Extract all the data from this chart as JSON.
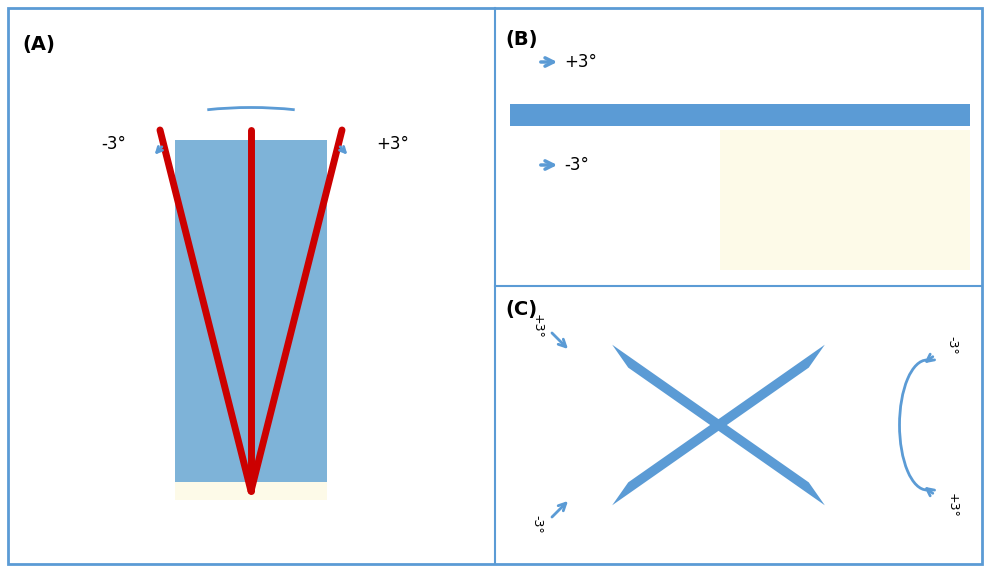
{
  "bg_color": "#ffffff",
  "border_color": "#5b9bd5",
  "blue_color": "#5b9bd5",
  "red_color": "#cc0000",
  "light_blue_rect": "#7eb3d8",
  "light_yellow": "#fdfae8",
  "label_A": "(A)",
  "label_B": "(B)",
  "label_C": "(C)",
  "minus3": "-3°",
  "plus3": "+3°"
}
